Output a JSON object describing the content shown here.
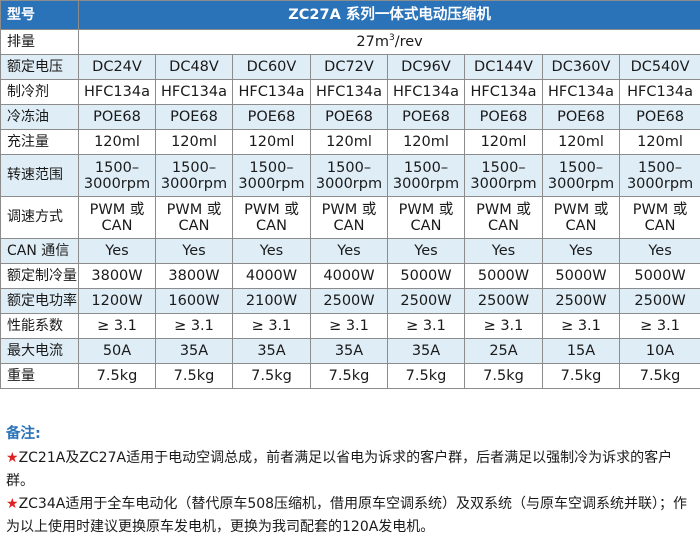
{
  "header": {
    "label": "型号",
    "title": "ZC27A 系列一体式电动压缩机"
  },
  "displacement": {
    "label": "排量",
    "value_main": "27m",
    "value_sup": "3",
    "value_unit": "/rev"
  },
  "rows": [
    {
      "label": "额定电压",
      "values": [
        "DC24V",
        "DC48V",
        "DC60V",
        "DC72V",
        "DC96V",
        "DC144V",
        "DC360V",
        "DC540V"
      ]
    },
    {
      "label": "制冷剂",
      "values": [
        "HFC134a",
        "HFC134a",
        "HFC134a",
        "HFC134a",
        "HFC134a",
        "HFC134a",
        "HFC134a",
        "HFC134a"
      ]
    },
    {
      "label": "冷冻油",
      "values": [
        "POE68",
        "POE68",
        "POE68",
        "POE68",
        "POE68",
        "POE68",
        "POE68",
        "POE68"
      ]
    },
    {
      "label": "充注量",
      "values": [
        "120ml",
        "120ml",
        "120ml",
        "120ml",
        "120ml",
        "120ml",
        "120ml",
        "120ml"
      ]
    },
    {
      "label": "转速范围",
      "line1": "1500–",
      "line2": "3000rpm",
      "values": [
        "",
        "",
        "",
        "",
        "",
        "",
        "",
        ""
      ]
    },
    {
      "label": "调速方式",
      "line1": "PWM 或",
      "line2": "CAN",
      "values": [
        "",
        "",
        "",
        "",
        "",
        "",
        "",
        ""
      ]
    },
    {
      "label": "CAN 通信",
      "values": [
        "Yes",
        "Yes",
        "Yes",
        "Yes",
        "Yes",
        "Yes",
        "Yes",
        "Yes"
      ]
    },
    {
      "label": "额定制冷量",
      "values": [
        "3800W",
        "3800W",
        "4000W",
        "4000W",
        "5000W",
        "5000W",
        "5000W",
        "5000W"
      ]
    },
    {
      "label": "额定电功率",
      "values": [
        "1200W",
        "1600W",
        "2100W",
        "2500W",
        "2500W",
        "2500W",
        "2500W",
        "2500W"
      ]
    },
    {
      "label": "性能系数",
      "values": [
        "≥ 3.1",
        "≥ 3.1",
        "≥ 3.1",
        "≥ 3.1",
        "≥ 3.1",
        "≥ 3.1",
        "≥ 3.1",
        "≥ 3.1"
      ]
    },
    {
      "label": "最大电流",
      "values": [
        "50A",
        "35A",
        "35A",
        "35A",
        "35A",
        "25A",
        "15A",
        "10A"
      ]
    },
    {
      "label": "重量",
      "values": [
        "7.5kg",
        "7.5kg",
        "7.5kg",
        "7.5kg",
        "7.5kg",
        "7.5kg",
        "7.5kg",
        "7.5kg"
      ]
    }
  ],
  "notes": {
    "title": "备注:",
    "star": "★",
    "items": [
      "ZC21A及ZC27A适用于电动空调总成，前者满足以省电为诉求的客户群，后者满足以强制冷为诉求的客户群。",
      "ZC34A适用于全车电动化（替代原车508压缩机，借用原车空调系统）及双系统（与原车空调系统并联）；作为以上使用时建议更换原车发电机，更换为我司配套的120A发电机。"
    ]
  }
}
